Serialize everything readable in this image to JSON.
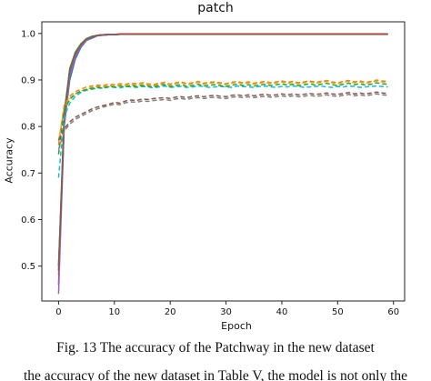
{
  "chart_data": {
    "type": "line",
    "title": "patch",
    "xlabel": "Epoch",
    "ylabel": "Accuracy",
    "xlim": [
      -3,
      62
    ],
    "ylim": [
      0.425,
      1.025
    ],
    "xticks": [
      "0",
      "10",
      "20",
      "30",
      "40",
      "50",
      "60"
    ],
    "yticks": [
      "0.5",
      "0.6",
      "0.7",
      "0.8",
      "0.9",
      "1.0"
    ],
    "grid": false,
    "x": [
      0,
      1,
      2,
      3,
      4,
      5,
      6,
      7,
      8,
      9,
      10,
      11,
      12,
      13,
      14,
      15,
      16,
      17,
      18,
      19,
      20,
      21,
      22,
      23,
      24,
      25,
      26,
      27,
      28,
      29,
      30,
      31,
      32,
      33,
      34,
      35,
      36,
      37,
      38,
      39,
      40,
      41,
      42,
      43,
      44,
      45,
      46,
      47,
      48,
      49,
      50,
      51,
      52,
      53,
      54,
      55,
      56,
      57,
      58,
      59
    ],
    "series": [
      {
        "style": "solid",
        "color": "#1f77b4",
        "values": [
          0.5,
          0.8,
          0.9,
          0.945,
          0.97,
          0.985,
          0.99,
          0.995,
          0.996,
          0.997,
          0.997,
          0.998,
          0.998,
          0.998,
          0.998,
          0.998,
          0.998,
          0.998,
          0.998,
          0.998,
          0.998,
          0.998,
          0.998,
          0.998,
          0.998,
          0.998,
          0.998,
          0.998,
          0.998,
          0.998,
          0.998,
          0.998,
          0.998,
          0.998,
          0.998,
          0.998,
          0.998,
          0.998,
          0.998,
          0.998,
          0.998,
          0.998,
          0.998,
          0.998,
          0.998,
          0.998,
          0.998,
          0.998,
          0.998,
          0.998,
          0.998,
          0.998,
          0.998,
          0.998,
          0.998,
          0.998,
          0.998,
          0.998,
          0.998,
          0.998
        ]
      },
      {
        "style": "solid",
        "color": "#ff7f0e",
        "values": [
          0.48,
          0.82,
          0.92,
          0.955,
          0.975,
          0.988,
          0.993,
          0.996,
          0.997,
          0.998,
          0.998,
          0.998,
          0.999,
          0.999,
          0.999,
          0.999,
          0.999,
          0.999,
          0.999,
          0.999,
          0.999,
          0.999,
          0.999,
          0.999,
          0.999,
          0.999,
          0.999,
          0.999,
          0.999,
          0.999,
          0.999,
          0.999,
          0.999,
          0.999,
          0.999,
          0.999,
          0.999,
          0.999,
          0.999,
          0.999,
          0.999,
          0.999,
          0.999,
          0.999,
          0.999,
          0.999,
          0.999,
          0.999,
          0.999,
          0.999,
          0.999,
          0.999,
          0.999,
          0.999,
          0.999,
          0.999,
          0.999,
          0.999,
          0.999,
          0.999
        ]
      },
      {
        "style": "solid",
        "color": "#2ca02c",
        "values": [
          0.5,
          0.83,
          0.925,
          0.96,
          0.978,
          0.989,
          0.994,
          0.996,
          0.997,
          0.998,
          0.998,
          0.998,
          0.998,
          0.998,
          0.998,
          0.998,
          0.998,
          0.998,
          0.998,
          0.998,
          0.998,
          0.998,
          0.998,
          0.998,
          0.998,
          0.998,
          0.998,
          0.998,
          0.998,
          0.998,
          0.998,
          0.998,
          0.998,
          0.998,
          0.998,
          0.998,
          0.998,
          0.998,
          0.998,
          0.998,
          0.998,
          0.998,
          0.998,
          0.998,
          0.998,
          0.998,
          0.998,
          0.998,
          0.998,
          0.998,
          0.998,
          0.998,
          0.998,
          0.998,
          0.998,
          0.998,
          0.998,
          0.998,
          0.998,
          0.998
        ]
      },
      {
        "style": "solid",
        "color": "#d62728",
        "values": [
          0.46,
          0.81,
          0.915,
          0.955,
          0.975,
          0.987,
          0.993,
          0.996,
          0.997,
          0.998,
          0.998,
          0.999,
          0.999,
          0.999,
          0.999,
          0.999,
          0.999,
          0.999,
          0.999,
          0.999,
          0.999,
          0.999,
          0.999,
          0.999,
          0.999,
          0.999,
          0.999,
          0.999,
          0.999,
          0.999,
          0.999,
          0.999,
          0.999,
          0.999,
          0.999,
          0.999,
          0.999,
          0.999,
          0.999,
          0.999,
          0.999,
          0.999,
          0.999,
          0.999,
          0.999,
          0.999,
          0.999,
          0.999,
          0.999,
          0.999,
          0.999,
          0.999,
          0.999,
          0.999,
          0.999,
          0.999,
          0.999,
          0.999,
          0.999,
          0.999
        ]
      },
      {
        "style": "solid",
        "color": "#9467bd",
        "values": [
          0.44,
          0.8,
          0.91,
          0.95,
          0.972,
          0.985,
          0.992,
          0.995,
          0.996,
          0.997,
          0.997,
          0.998,
          0.998,
          0.998,
          0.998,
          0.998,
          0.998,
          0.998,
          0.998,
          0.998,
          0.998,
          0.998,
          0.998,
          0.998,
          0.998,
          0.998,
          0.998,
          0.998,
          0.998,
          0.998,
          0.998,
          0.998,
          0.998,
          0.998,
          0.998,
          0.998,
          0.998,
          0.998,
          0.998,
          0.998,
          0.998,
          0.998,
          0.998,
          0.998,
          0.998,
          0.998,
          0.998,
          0.998,
          0.998,
          0.998,
          0.998,
          0.998,
          0.998,
          0.998,
          0.998,
          0.998,
          0.998,
          0.998,
          0.998,
          0.998
        ]
      },
      {
        "style": "solid",
        "color": "#8c564b",
        "values": [
          0.49,
          0.82,
          0.92,
          0.957,
          0.976,
          0.988,
          0.993,
          0.996,
          0.997,
          0.998,
          0.998,
          0.998,
          0.998,
          0.998,
          0.998,
          0.998,
          0.998,
          0.998,
          0.998,
          0.998,
          0.998,
          0.998,
          0.998,
          0.998,
          0.998,
          0.998,
          0.998,
          0.998,
          0.998,
          0.998,
          0.998,
          0.998,
          0.998,
          0.998,
          0.998,
          0.998,
          0.998,
          0.998,
          0.998,
          0.998,
          0.998,
          0.998,
          0.998,
          0.998,
          0.998,
          0.998,
          0.998,
          0.998,
          0.998,
          0.998,
          0.998,
          0.998,
          0.998,
          0.998,
          0.998,
          0.998,
          0.998,
          0.998,
          0.998,
          0.998
        ]
      },
      {
        "style": "dashed",
        "color": "#17becf",
        "values": [
          0.69,
          0.82,
          0.85,
          0.865,
          0.873,
          0.878,
          0.88,
          0.883,
          0.882,
          0.885,
          0.884,
          0.883,
          0.886,
          0.885,
          0.884,
          0.886,
          0.885,
          0.883,
          0.885,
          0.887,
          0.884,
          0.885,
          0.886,
          0.884,
          0.885,
          0.887,
          0.886,
          0.884,
          0.885,
          0.886,
          0.885,
          0.884,
          0.887,
          0.886,
          0.885,
          0.884,
          0.886,
          0.887,
          0.885,
          0.884,
          0.886,
          0.885,
          0.887,
          0.886,
          0.884,
          0.885,
          0.886,
          0.887,
          0.885,
          0.884,
          0.886,
          0.885,
          0.887,
          0.886,
          0.884,
          0.885,
          0.886,
          0.887,
          0.886,
          0.885
        ]
      },
      {
        "style": "dashed",
        "color": "#bcbd22",
        "values": [
          0.77,
          0.84,
          0.86,
          0.87,
          0.876,
          0.88,
          0.884,
          0.886,
          0.885,
          0.888,
          0.887,
          0.889,
          0.888,
          0.89,
          0.889,
          0.891,
          0.89,
          0.888,
          0.891,
          0.893,
          0.889,
          0.892,
          0.894,
          0.89,
          0.892,
          0.895,
          0.891,
          0.893,
          0.894,
          0.892,
          0.89,
          0.893,
          0.895,
          0.892,
          0.894,
          0.891,
          0.893,
          0.895,
          0.892,
          0.894,
          0.896,
          0.893,
          0.895,
          0.892,
          0.894,
          0.896,
          0.893,
          0.895,
          0.897,
          0.894,
          0.892,
          0.895,
          0.897,
          0.894,
          0.896,
          0.893,
          0.895,
          0.898,
          0.896,
          0.895
        ]
      },
      {
        "style": "dashed",
        "color": "#ff7f0e",
        "values": [
          0.76,
          0.845,
          0.865,
          0.875,
          0.88,
          0.885,
          0.887,
          0.889,
          0.888,
          0.891,
          0.89,
          0.892,
          0.891,
          0.893,
          0.892,
          0.894,
          0.892,
          0.89,
          0.893,
          0.895,
          0.891,
          0.894,
          0.896,
          0.892,
          0.894,
          0.897,
          0.893,
          0.895,
          0.896,
          0.894,
          0.892,
          0.895,
          0.897,
          0.894,
          0.896,
          0.893,
          0.895,
          0.897,
          0.894,
          0.896,
          0.898,
          0.895,
          0.897,
          0.894,
          0.896,
          0.898,
          0.895,
          0.897,
          0.899,
          0.896,
          0.894,
          0.897,
          0.899,
          0.896,
          0.898,
          0.895,
          0.897,
          0.9,
          0.898,
          0.897
        ]
      },
      {
        "style": "dashed",
        "color": "#2ca02c",
        "values": [
          0.74,
          0.835,
          0.858,
          0.87,
          0.876,
          0.88,
          0.882,
          0.884,
          0.883,
          0.886,
          0.885,
          0.887,
          0.885,
          0.888,
          0.886,
          0.888,
          0.887,
          0.885,
          0.888,
          0.89,
          0.886,
          0.888,
          0.89,
          0.886,
          0.888,
          0.891,
          0.887,
          0.889,
          0.89,
          0.888,
          0.886,
          0.889,
          0.891,
          0.888,
          0.89,
          0.887,
          0.889,
          0.891,
          0.888,
          0.89,
          0.892,
          0.889,
          0.891,
          0.888,
          0.89,
          0.892,
          0.889,
          0.891,
          0.893,
          0.89,
          0.888,
          0.891,
          0.893,
          0.89,
          0.892,
          0.889,
          0.891,
          0.894,
          0.892,
          0.891
        ]
      },
      {
        "style": "dashed",
        "color": "#8c564b",
        "values": [
          0.77,
          0.795,
          0.81,
          0.82,
          0.826,
          0.832,
          0.838,
          0.842,
          0.845,
          0.848,
          0.852,
          0.85,
          0.855,
          0.857,
          0.856,
          0.859,
          0.858,
          0.86,
          0.861,
          0.862,
          0.86,
          0.863,
          0.864,
          0.862,
          0.865,
          0.866,
          0.864,
          0.866,
          0.867,
          0.865,
          0.864,
          0.867,
          0.868,
          0.866,
          0.868,
          0.866,
          0.868,
          0.869,
          0.867,
          0.868,
          0.87,
          0.868,
          0.87,
          0.868,
          0.869,
          0.871,
          0.869,
          0.87,
          0.872,
          0.87,
          0.869,
          0.871,
          0.873,
          0.87,
          0.872,
          0.87,
          0.872,
          0.874,
          0.872,
          0.871
        ]
      },
      {
        "style": "dashed",
        "color": "#7f7f7f",
        "values": [
          0.75,
          0.79,
          0.805,
          0.815,
          0.822,
          0.828,
          0.834,
          0.838,
          0.842,
          0.845,
          0.848,
          0.847,
          0.851,
          0.853,
          0.852,
          0.855,
          0.854,
          0.856,
          0.857,
          0.858,
          0.856,
          0.859,
          0.86,
          0.858,
          0.861,
          0.862,
          0.86,
          0.862,
          0.863,
          0.861,
          0.86,
          0.863,
          0.864,
          0.862,
          0.864,
          0.862,
          0.864,
          0.865,
          0.863,
          0.864,
          0.866,
          0.864,
          0.866,
          0.864,
          0.865,
          0.867,
          0.865,
          0.866,
          0.868,
          0.866,
          0.865,
          0.867,
          0.869,
          0.866,
          0.868,
          0.866,
          0.868,
          0.87,
          0.868,
          0.867
        ]
      }
    ]
  },
  "caption": "Fig. 13 The accuracy of the Patchway in the new dataset",
  "clipped_text": "the accuracy of the new dataset in Table V, the model is not only the"
}
